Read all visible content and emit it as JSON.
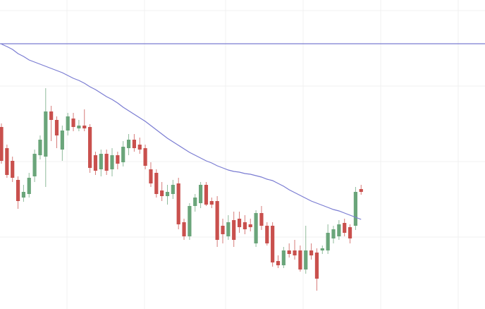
{
  "chart_data": {
    "type": "candlestick",
    "ylim": [
      0,
      438
    ],
    "yticks": [
      102,
      209,
      316,
      423
    ],
    "grid": true,
    "up_color": "#6aa57a",
    "down_color": "#c9504d",
    "open": [
      258,
      228,
      210,
      183,
      158,
      163,
      188,
      218,
      216,
      280,
      268,
      226,
      253,
      270,
      256,
      260,
      258,
      218,
      198,
      220,
      198,
      218,
      208,
      228,
      240,
      233,
      228,
      198,
      193,
      168,
      160,
      163,
      178,
      123,
      103,
      146,
      150,
      176,
      153,
      153,
      118,
      103,
      126,
      128,
      123,
      120,
      93,
      136,
      118,
      118,
      68,
      62,
      83,
      83,
      83,
      56,
      83,
      80,
      83,
      83,
      100,
      103,
      122,
      116,
      118,
      170
    ],
    "high": [
      263,
      233,
      216,
      188,
      176,
      193,
      226,
      246,
      313,
      288,
      273,
      260,
      278,
      278,
      268,
      283,
      262,
      223,
      226,
      226,
      228,
      223,
      238,
      248,
      248,
      243,
      233,
      208,
      198,
      180,
      176,
      183,
      186,
      128,
      150,
      163,
      180,
      180,
      158,
      160,
      128,
      133,
      138,
      138,
      133,
      128,
      140,
      146,
      123,
      123,
      76,
      88,
      93,
      98,
      90,
      118,
      93,
      86,
      90,
      120,
      118,
      126,
      128,
      120,
      173,
      176
    ],
    "low": [
      206,
      186,
      180,
      142,
      152,
      158,
      180,
      212,
      173,
      238,
      228,
      210,
      246,
      252,
      252,
      252,
      193,
      190,
      188,
      190,
      188,
      198,
      202,
      218,
      223,
      220,
      198,
      173,
      158,
      153,
      148,
      156,
      113,
      98,
      98,
      138,
      143,
      146,
      143,
      88,
      93,
      98,
      88,
      108,
      106,
      110,
      88,
      112,
      90,
      60,
      58,
      58,
      73,
      70,
      53,
      50,
      70,
      26,
      78,
      78,
      93,
      98,
      103,
      93,
      112,
      162
    ],
    "close": [
      210,
      190,
      186,
      153,
      166,
      186,
      220,
      240,
      280,
      268,
      246,
      253,
      273,
      258,
      260,
      256,
      200,
      196,
      220,
      196,
      218,
      206,
      230,
      240,
      228,
      226,
      203,
      178,
      163,
      160,
      166,
      176,
      120,
      103,
      146,
      158,
      176,
      148,
      148,
      98,
      106,
      123,
      98,
      116,
      113,
      116,
      136,
      118,
      93,
      66,
      62,
      83,
      78,
      76,
      56,
      83,
      76,
      43,
      86,
      108,
      113,
      120,
      108,
      100,
      166,
      166
    ],
    "ma": {
      "color": "#7a7cd2",
      "values": [
        375.5,
        372,
        368,
        362,
        358,
        353,
        350,
        347,
        344,
        341,
        338,
        335,
        331,
        327,
        324,
        320,
        315,
        311,
        306,
        301,
        297,
        292,
        286,
        281,
        276,
        271,
        266,
        260,
        254,
        248,
        242,
        237,
        232,
        227,
        222,
        218,
        214,
        210,
        207,
        203,
        200,
        197,
        195,
        194,
        192,
        191,
        189,
        187,
        184,
        182,
        178,
        174,
        169,
        165,
        161,
        157,
        153,
        150,
        147,
        144,
        141,
        139,
        136,
        133,
        130,
        127
      ]
    },
    "reference_lines": [
      {
        "value": 376,
        "color": "#7a7cd2"
      }
    ]
  }
}
